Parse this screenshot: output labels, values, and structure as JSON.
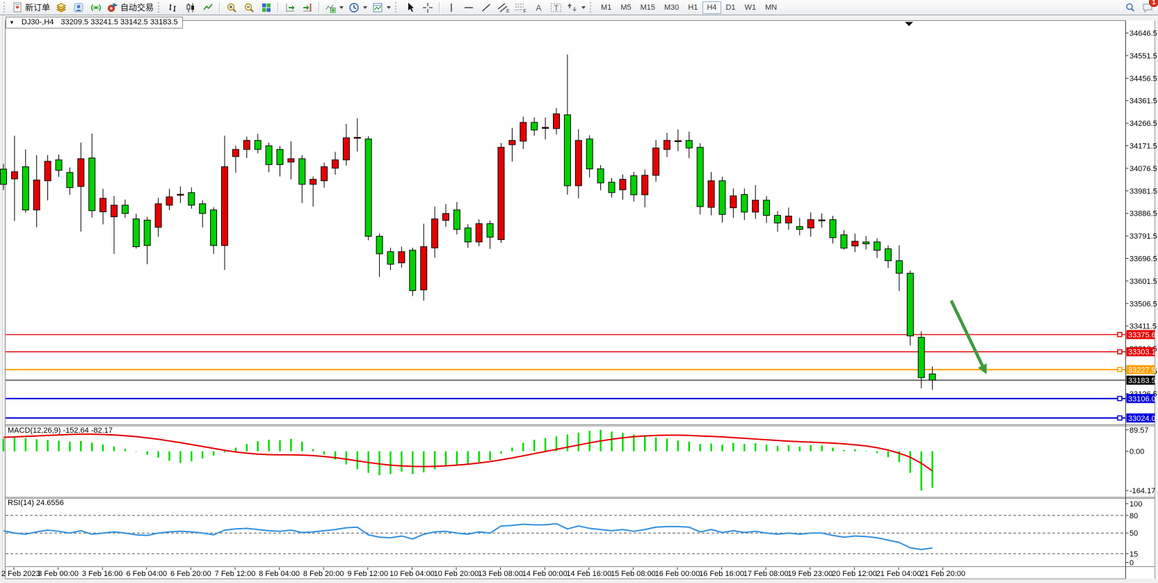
{
  "toolbar": {
    "new_order": "新订单",
    "auto_trading": "自动交易",
    "drawing_glyphs": {
      "channel": "E",
      "fibo": "F",
      "text": "A",
      "label": "T"
    },
    "timeframes": [
      "M1",
      "M5",
      "M15",
      "M30",
      "H1",
      "H4",
      "D1",
      "W1",
      "MN"
    ],
    "selected_timeframe": "H4",
    "notification_badge": "1"
  },
  "chart": {
    "title_symbol": "DJ30-,H4",
    "title_ohlc": "33209.5 33241.5 33142.5 33183.5"
  },
  "indicator_labels": {
    "macd": "MACD(12,26,9) -152.64 -82.17",
    "rsi": "RSI(14) 24.6556"
  },
  "price_axis_ticks": [
    "34646.5",
    "34551.5",
    "34456.5",
    "34361.5",
    "34266.5",
    "34171.5",
    "34076.5",
    "33981.5",
    "33886.5",
    "33791.5",
    "33696.5",
    "33601.5",
    "33506.5",
    "33411.5",
    "33316.5",
    "33221.5",
    "33126.5"
  ],
  "hlines": [
    {
      "label": "33375.6",
      "price": 33375.6,
      "color": "#e60000",
      "width": 1.4,
      "handle": true
    },
    {
      "label": "33303.1",
      "price": 33303.1,
      "color": "#e60000",
      "width": 1.4,
      "handle": true
    },
    {
      "label": "33227.9",
      "price": 33227.9,
      "color": "#ffa000",
      "width": 2,
      "handle": true
    },
    {
      "label": "33183.5",
      "price": 33183.5,
      "color": "#000000",
      "width": 1,
      "handle": false
    },
    {
      "label": "33106.0",
      "price": 33106.0,
      "color": "#0000dd",
      "width": 2,
      "handle": true
    },
    {
      "label": "33024.0",
      "price": 33024.0,
      "color": "#0000dd",
      "width": 2,
      "handle": true
    }
  ],
  "time_axis_labels": [
    "2 Feb 2023",
    "3 Feb 00:00",
    "3 Feb 16:00",
    "6 Feb 04:00",
    "6 Feb 20:00",
    "7 Feb 12:00",
    "8 Feb 04:00",
    "8 Feb 20:00",
    "9 Feb 12:00",
    "10 Feb 04:00",
    "10 Feb 20:00",
    "13 Feb 08:00",
    "14 Feb 00:00",
    "14 Feb 16:00",
    "15 Feb 08:00",
    "16 Feb 00:00",
    "16 Feb 16:00",
    "17 Feb 08:00",
    "19 Feb 23:00",
    "20 Feb 12:00",
    "21 Feb 04:00",
    "21 Feb 20:00"
  ],
  "chart_data": {
    "type": "candlestick",
    "symbol": "DJ30-",
    "period": "H4",
    "title": "DJ30-,H4  33209.5 33241.5 33142.5 33183.5",
    "color_convention": "red = bullish, green = bearish (Chinese convention)",
    "up_color": "#e60000",
    "down_color": "#00d300",
    "price_ylim": [
      32997,
      34698
    ],
    "price_tick_step": 95,
    "grid": false,
    "candles": [
      [
        34073,
        34095,
        33985,
        34009
      ],
      [
        34032,
        34214,
        33854,
        34062
      ],
      [
        34083,
        34156,
        33890,
        33901
      ],
      [
        33901,
        34132,
        33828,
        34027
      ],
      [
        34024,
        34132,
        33941,
        34106
      ],
      [
        34112,
        34135,
        34040,
        34068
      ],
      [
        34059,
        34080,
        33965,
        33995
      ],
      [
        34000,
        34185,
        33810,
        34117
      ],
      [
        34120,
        34223,
        33869,
        33898
      ],
      [
        33893,
        33990,
        33840,
        33950
      ],
      [
        33872,
        33960,
        33716,
        33921
      ],
      [
        33921,
        33945,
        33868,
        33886
      ],
      [
        33863,
        33885,
        33738,
        33746
      ],
      [
        33858,
        33872,
        33672,
        33751
      ],
      [
        33828,
        33952,
        33788,
        33927
      ],
      [
        33921,
        33990,
        33900,
        33956
      ],
      [
        33963,
        34000,
        33930,
        33967
      ],
      [
        33974,
        33996,
        33906,
        33921
      ],
      [
        33927,
        33942,
        33827,
        33886
      ],
      [
        33901,
        33912,
        33716,
        33751
      ],
      [
        33751,
        34214,
        33648,
        34083
      ],
      [
        34126,
        34172,
        34058,
        34156
      ],
      [
        34156,
        34210,
        34120,
        34194
      ],
      [
        34194,
        34222,
        34140,
        34156
      ],
      [
        34171,
        34185,
        34060,
        34092
      ],
      [
        34156,
        34170,
        34042,
        34092
      ],
      [
        34103,
        34190,
        34030,
        34117
      ],
      [
        34117,
        34132,
        33930,
        34009
      ],
      [
        34009,
        34042,
        33915,
        34030
      ],
      [
        34024,
        34100,
        33995,
        34083
      ],
      [
        34077,
        34146,
        34050,
        34112
      ],
      [
        34112,
        34264,
        34088,
        34205
      ],
      [
        34203,
        34287,
        34147,
        34207
      ],
      [
        34200,
        34212,
        33773,
        33790
      ],
      [
        33790,
        33802,
        33619,
        33716
      ],
      [
        33725,
        33742,
        33648,
        33672
      ],
      [
        33678,
        33746,
        33658,
        33725
      ],
      [
        33731,
        33742,
        33538,
        33561
      ],
      [
        33564,
        33843,
        33519,
        33746
      ],
      [
        33741,
        33915,
        33700,
        33863
      ],
      [
        33857,
        33926,
        33830,
        33886
      ],
      [
        33901,
        33934,
        33798,
        33819
      ],
      [
        33825,
        33841,
        33741,
        33766
      ],
      [
        33766,
        33861,
        33748,
        33843
      ],
      [
        33843,
        33856,
        33737,
        33786
      ],
      [
        33776,
        34183,
        33762,
        34165
      ],
      [
        34176,
        34247,
        34105,
        34194
      ],
      [
        34191,
        34294,
        34158,
        34270
      ],
      [
        34270,
        34291,
        34214,
        34238
      ],
      [
        34245,
        34291,
        34199,
        34249
      ],
      [
        34244,
        34331,
        34219,
        34306
      ],
      [
        34302,
        34556,
        33965,
        34003
      ],
      [
        34003,
        34241,
        33950,
        34194
      ],
      [
        34200,
        34216,
        34038,
        34074
      ],
      [
        34074,
        34090,
        33984,
        34015
      ],
      [
        34018,
        34036,
        33953,
        33974
      ],
      [
        33986,
        34051,
        33944,
        34030
      ],
      [
        34045,
        34061,
        33936,
        33965
      ],
      [
        33965,
        34072,
        33912,
        34047
      ],
      [
        34047,
        34196,
        34020,
        34162
      ],
      [
        34156,
        34226,
        34124,
        34194
      ],
      [
        34189,
        34241,
        34149,
        34193
      ],
      [
        34194,
        34231,
        34119,
        34162
      ],
      [
        34165,
        34182,
        33882,
        33915
      ],
      [
        33912,
        34061,
        33878,
        34024
      ],
      [
        34024,
        34041,
        33848,
        33882
      ],
      [
        33910,
        33992,
        33868,
        33960
      ],
      [
        33966,
        33991,
        33858,
        33892
      ],
      [
        33892,
        34006,
        33863,
        33942
      ],
      [
        33942,
        33959,
        33846,
        33878
      ],
      [
        33878,
        33896,
        33809,
        33846
      ],
      [
        33846,
        33911,
        33818,
        33875
      ],
      [
        33831,
        33868,
        33794,
        33819
      ],
      [
        33825,
        33891,
        33788,
        33860
      ],
      [
        33855,
        33886,
        33827,
        33859
      ],
      [
        33860,
        33876,
        33759,
        33784
      ],
      [
        33796,
        33816,
        33734,
        33740
      ],
      [
        33749,
        33801,
        33723,
        33769
      ],
      [
        33766,
        33791,
        33734,
        33758
      ],
      [
        33766,
        33781,
        33699,
        33731
      ],
      [
        33737,
        33751,
        33657,
        33687
      ],
      [
        33687,
        33752,
        33559,
        33634
      ],
      [
        33634,
        33646,
        33329,
        33370
      ],
      [
        33364,
        33389,
        33149,
        33194
      ],
      [
        33209.5,
        33241.5,
        33142.5,
        33183.5
      ]
    ],
    "macd": {
      "label": "MACD(12,26,9) -152.64 -82.17",
      "current_macd": -152.64,
      "current_signal": -82.17,
      "hist_color": "#00dd00",
      "signal_color": "#e60000",
      "ticks": [
        "89.57",
        "0.00",
        "-164.17"
      ],
      "ylim": [
        -192.7,
        104.9
      ],
      "hist": [
        52,
        58,
        55,
        50,
        47,
        44,
        40,
        43,
        36,
        28,
        20,
        10,
        -2,
        -15,
        -27,
        -40,
        -49,
        -42,
        -30,
        -18,
        -5,
        15,
        30,
        42,
        48,
        46,
        52,
        40,
        9,
        -14,
        -35,
        -55,
        -75,
        -90,
        -100,
        -95,
        -85,
        -95,
        -88,
        -75,
        -62,
        -55,
        -52,
        -45,
        -38,
        -10,
        15,
        35,
        48,
        55,
        62,
        70,
        78,
        85,
        89.57,
        82,
        76,
        70,
        62,
        58,
        52,
        45,
        40,
        30,
        32,
        28,
        35,
        30,
        34,
        28,
        22,
        25,
        20,
        26,
        24,
        15,
        5,
        8,
        2,
        -8,
        -25,
        -45,
        -90,
        -164.17,
        -152.64
      ],
      "signal": [
        58,
        60,
        62,
        64,
        66,
        68,
        70,
        71,
        71,
        70,
        68,
        65,
        61,
        56,
        50,
        43,
        36,
        28,
        20,
        12,
        4,
        -3,
        -8,
        -12,
        -14,
        -15,
        -15,
        -16,
        -18,
        -22,
        -27,
        -33,
        -40,
        -47,
        -53,
        -58,
        -61,
        -63,
        -64,
        -63,
        -61,
        -58,
        -54,
        -49,
        -43,
        -36,
        -28,
        -19,
        -10,
        -1,
        8,
        17,
        26,
        35,
        43,
        50,
        56,
        61,
        64,
        66,
        67,
        67,
        66,
        64,
        62,
        60,
        57,
        54,
        51,
        48,
        45,
        42,
        40,
        38,
        36,
        34,
        31,
        27,
        22,
        15,
        5,
        -8,
        -25,
        -50,
        -82.17
      ]
    },
    "rsi": {
      "label": "RSI(14) 24.6556",
      "current": 24.6556,
      "color": "#3390e0",
      "levels": [
        80,
        50,
        15
      ],
      "ticks": [
        "100",
        "80",
        "50",
        "15",
        "0"
      ],
      "ylim": [
        -6.5,
        108.8
      ],
      "values": [
        54,
        50,
        48,
        52,
        55,
        53,
        50,
        54,
        48,
        50,
        52,
        50,
        47,
        46,
        50,
        52,
        53,
        52,
        50,
        47,
        55,
        57,
        58,
        56,
        54,
        53,
        55,
        51,
        52,
        54,
        56,
        59,
        60,
        47,
        43,
        42,
        45,
        40,
        48,
        52,
        53,
        50,
        48,
        52,
        50,
        62,
        63,
        65,
        64,
        64,
        66,
        57,
        62,
        58,
        56,
        54,
        56,
        53,
        56,
        60,
        61,
        61,
        60,
        52,
        56,
        51,
        54,
        51,
        53,
        50,
        48,
        50,
        48,
        50,
        50,
        46,
        43,
        45,
        44,
        42,
        38,
        34,
        25,
        22,
        24.66
      ]
    },
    "annotations": {
      "arrow": {
        "x1_bar": 85.7,
        "price1": 33519,
        "x2_bar": 88.9,
        "price2": 33208,
        "color": "#3c9a3c"
      }
    },
    "legend_position": "none",
    "xlabel": "",
    "ylabel": ""
  }
}
